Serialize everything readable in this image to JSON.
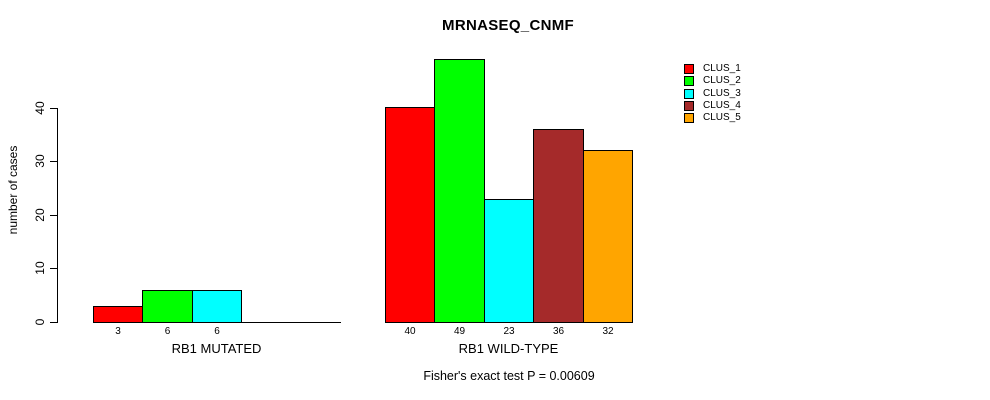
{
  "chart_data": {
    "type": "bar",
    "title": "MRNASEQ_CNMF",
    "ylabel": "number of cases",
    "xlabel": "",
    "yticks": [
      0,
      10,
      20,
      30,
      40
    ],
    "ylim": [
      0,
      49
    ],
    "grid": false,
    "caption": "Fisher's exact test P = 0.00609",
    "legend": {
      "position": "right",
      "entries": [
        {
          "label": "CLUS_1",
          "color": "#FF0000"
        },
        {
          "label": "CLUS_2",
          "color": "#00FF00"
        },
        {
          "label": "CLUS_3",
          "color": "#00FFFF"
        },
        {
          "label": "CLUS_4",
          "color": "#A52A2A"
        },
        {
          "label": "CLUS_5",
          "color": "#FFA500"
        }
      ]
    },
    "series_colors": [
      "#FF0000",
      "#00FF00",
      "#00FFFF",
      "#A52A2A",
      "#FFA500"
    ],
    "groups": [
      {
        "label": "RB1 MUTATED",
        "values": [
          3,
          6,
          6,
          0,
          0
        ],
        "bar_labels": [
          "3",
          "6",
          "6",
          "",
          ""
        ]
      },
      {
        "label": "RB1 WILD-TYPE",
        "values": [
          40,
          49,
          23,
          36,
          32
        ],
        "bar_labels": [
          "40",
          "49",
          "23",
          "36",
          "32"
        ]
      }
    ],
    "axis_color": "#000000",
    "background_color": "#FFFFFF"
  }
}
